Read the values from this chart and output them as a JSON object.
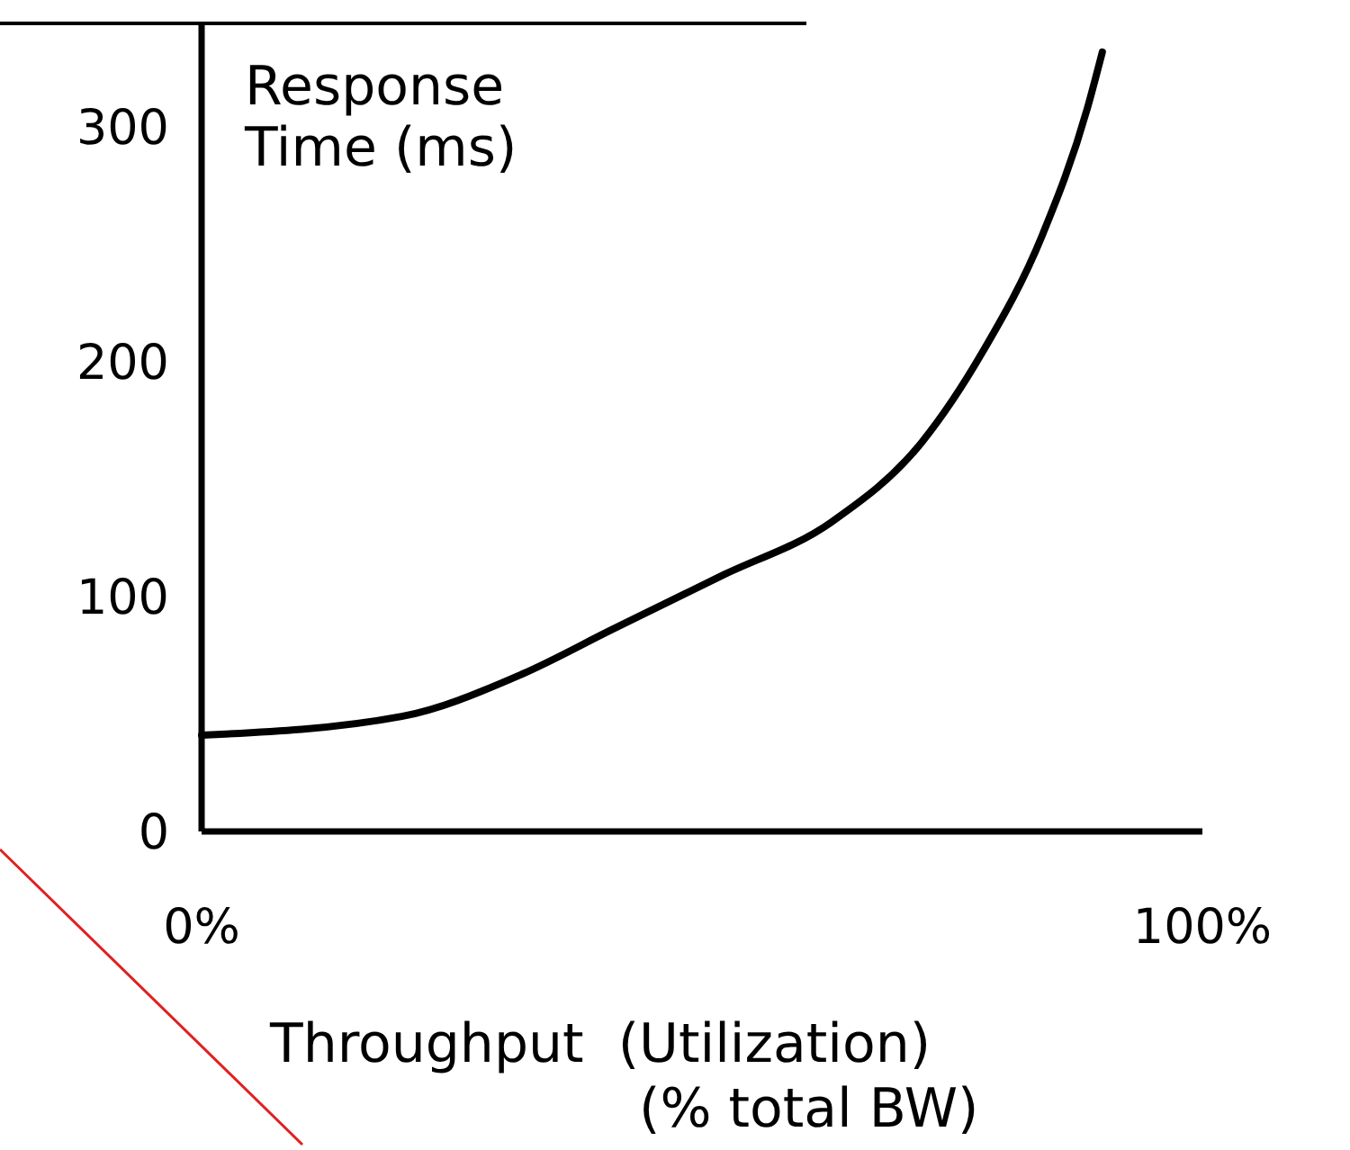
{
  "chart_data": {
    "type": "line",
    "ylabel": "Response\nTime (ms)",
    "xlabel": "Throughput  (Utilization)\n(% total BW)",
    "x": [
      0,
      20,
      32,
      41,
      52,
      63,
      72,
      78,
      84,
      88.5,
      90
    ],
    "series": [
      {
        "color": "#000000",
        "values": [
          41,
          49,
          67,
          86,
          109,
          132,
          166,
          204,
          254,
          308,
          332
        ]
      }
    ],
    "xlim": [
      0,
      100
    ],
    "ylim": [
      0,
      345
    ],
    "xticks": [
      {
        "value": 0,
        "label": "0%"
      },
      {
        "value": 100,
        "label": "100%"
      }
    ],
    "yticks": [
      0,
      100,
      200,
      300
    ],
    "marker": "none",
    "line_style": "solid"
  }
}
